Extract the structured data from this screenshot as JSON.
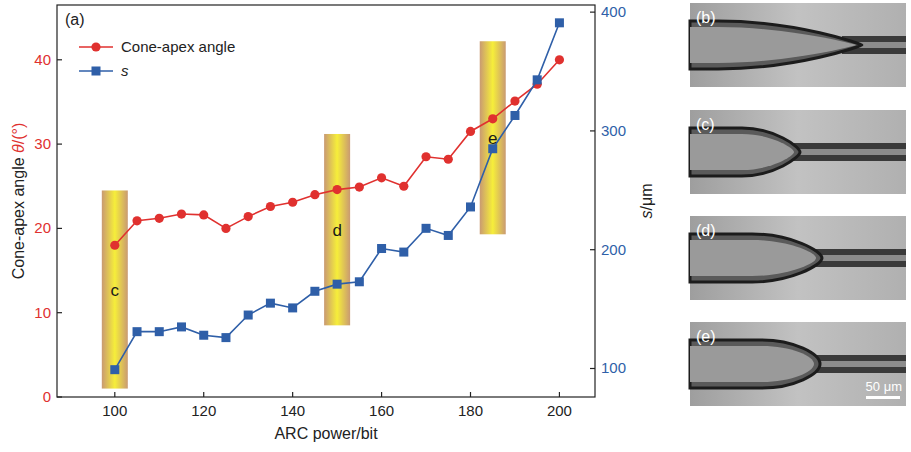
{
  "chart_data": {
    "type": "line",
    "panel": "(a)",
    "x_label": "ARC power/bit",
    "y_label": "Cone-apex angle θ/(°)",
    "y2_label": "s/μm",
    "x": [
      100,
      105,
      110,
      115,
      120,
      125,
      130,
      135,
      140,
      145,
      150,
      155,
      160,
      165,
      170,
      175,
      180,
      185,
      190,
      195,
      200
    ],
    "series": [
      {
        "name": "Cone-apex angle",
        "color": "#e0312f",
        "marker": "circle",
        "line_style": "solid",
        "values": [
          18.0,
          20.9,
          21.2,
          21.7,
          21.6,
          20.0,
          21.4,
          22.6,
          23.1,
          24.0,
          24.6,
          24.9,
          26.0,
          25.0,
          28.5,
          28.2,
          31.5,
          33.0,
          35.1,
          37.1,
          40.0
        ]
      },
      {
        "name": "s",
        "color": "#2f5fa8",
        "marker": "square",
        "line_style": "solid",
        "axis": "y2",
        "values": [
          99,
          131,
          131,
          135,
          128,
          126,
          145,
          155,
          151,
          165,
          171,
          173,
          201,
          198,
          218,
          212,
          236,
          285,
          313,
          343,
          391
        ]
      }
    ],
    "xlim": [
      87,
      208
    ],
    "xticks": [
      100,
      120,
      140,
      160,
      180,
      200
    ],
    "ylim": [
      0,
      46.5
    ],
    "yticks": [
      0,
      10,
      20,
      30,
      40
    ],
    "y2lim": [
      76,
      406
    ],
    "y2ticks": [
      100,
      200,
      300,
      400
    ],
    "legend": "upper left",
    "grid": false,
    "annotations": [
      {
        "text": "c",
        "x": 100,
        "y_range": [
          1,
          24.5
        ]
      },
      {
        "text": "d",
        "x": 150,
        "y_range": [
          8.5,
          31.2
        ]
      },
      {
        "text": "e",
        "x": 185,
        "y_range": [
          19.3,
          42.2
        ]
      }
    ]
  },
  "micrographs": {
    "panels": [
      {
        "label": "(b)"
      },
      {
        "label": "(c)"
      },
      {
        "label": "(d)"
      },
      {
        "label": "(e)"
      }
    ],
    "scale_bar": "50 μm"
  }
}
